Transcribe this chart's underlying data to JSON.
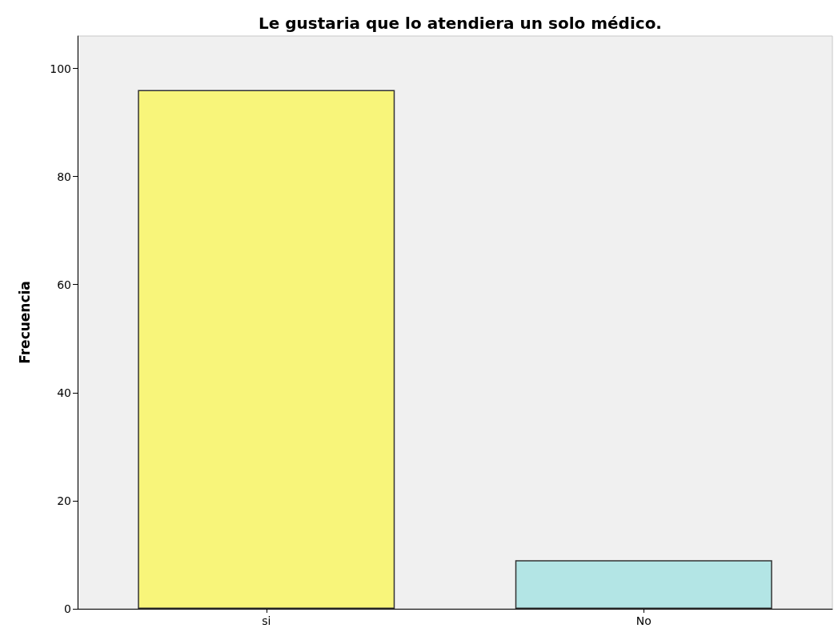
{
  "chart_data": {
    "type": "bar",
    "title": "Le gustaria que lo atendiera un solo médico.",
    "ylabel": "Frecuencia",
    "categories": [
      "si",
      "No"
    ],
    "values": [
      96,
      9
    ],
    "colors": [
      "#f8f57a",
      "#b3e5e5"
    ],
    "ylim": [
      0,
      106
    ],
    "yticks": [
      0,
      20,
      40,
      60,
      80,
      100
    ],
    "grid": false
  }
}
